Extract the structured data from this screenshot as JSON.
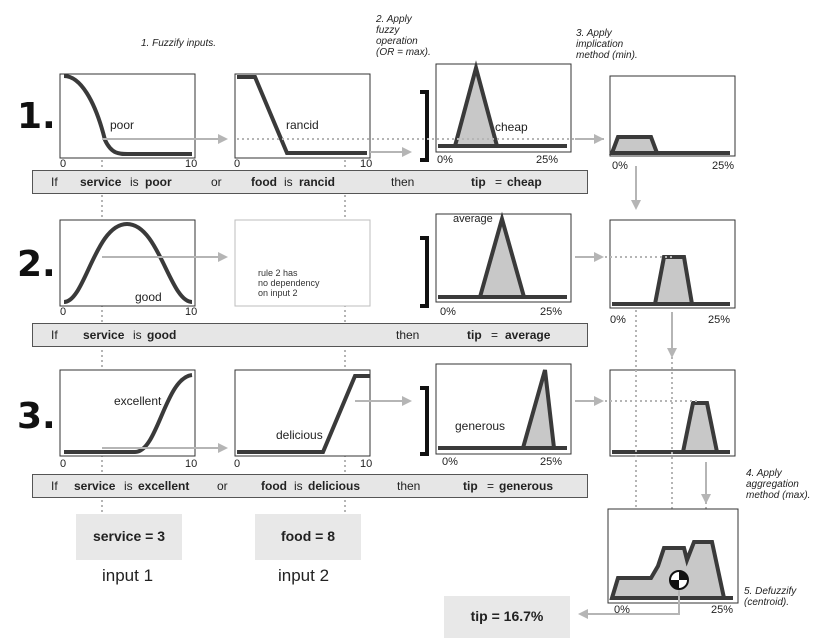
{
  "steps": {
    "s1": "1. Fuzzify inputs.",
    "s2": [
      "2. Apply",
      "fuzzy",
      "operation",
      "(OR = max)."
    ],
    "s3": [
      "3. Apply",
      "implication",
      "method (min)."
    ],
    "s4": [
      "4. Apply",
      "aggregation",
      "method (max)."
    ],
    "s5": [
      "5. Defuzzify",
      "(centroid)."
    ]
  },
  "rule_numbers": [
    "1.",
    "2.",
    "3."
  ],
  "plots": {
    "poor": "poor",
    "rancid": "rancid",
    "cheap": "cheap",
    "good": "good",
    "no_dependency": [
      "rule 2 has",
      "no dependency",
      "on input 2"
    ],
    "average": "average",
    "excellent": "excellent",
    "delicious": "delicious",
    "generous": "generous"
  },
  "ticks": {
    "zero": "0",
    "ten": "10",
    "zero_pct": "0%",
    "max_pct": "25%"
  },
  "rules": [
    {
      "if": "If",
      "input1": "service",
      "is1": "is",
      "mf1": "poor",
      "op": "or",
      "input2": "food",
      "is2": "is",
      "mf2": "rancid",
      "then": "then",
      "output": "tip",
      "eq": "=",
      "mfo": "cheap"
    },
    {
      "if": "If",
      "input1": "service",
      "is1": "is",
      "mf1": "good",
      "then": "then",
      "output": "tip",
      "eq": "=",
      "mfo": "average"
    },
    {
      "if": "If",
      "input1": "service",
      "is1": "is",
      "mf1": "excellent",
      "op": "or",
      "input2": "food",
      "is2": "is",
      "mf2": "delicious",
      "then": "then",
      "output": "tip",
      "eq": "=",
      "mfo": "generous"
    }
  ],
  "inputs": {
    "service_value": "service = 3",
    "food_value": "food = 8",
    "input1_caption": "input 1",
    "input2_caption": "input 2"
  },
  "output": {
    "tip_value": "tip = 16.7%"
  },
  "colors": {
    "curve": "#3a3a3a",
    "fill": "#c8c8c8",
    "guide": "#b5b5b5",
    "rule_bar": "#e6e6e6"
  }
}
